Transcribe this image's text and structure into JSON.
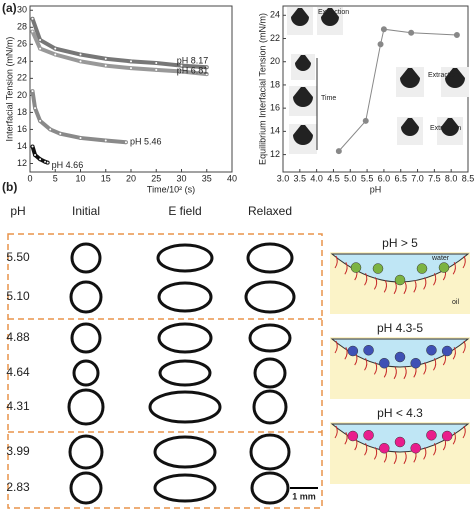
{
  "panel_a": {
    "label": "(a)"
  },
  "chart_data": [
    {
      "type": "line",
      "ylabel": "Interfacial Tension (mN/m)",
      "xlabel": "Time/10² (s)",
      "xlim": [
        0,
        40
      ],
      "xticks": [
        0,
        5,
        10,
        15,
        20,
        25,
        30,
        35,
        40
      ],
      "ylim": [
        11,
        30.5
      ],
      "yticks": [
        12,
        14,
        16,
        18,
        20,
        22,
        24,
        26,
        28,
        30
      ],
      "series": [
        {
          "name": "pH 8.17",
          "color": "#777777",
          "x": [
            0.5,
            2,
            5,
            10,
            15,
            20,
            25,
            30,
            35
          ],
          "values": [
            29,
            26.5,
            25.5,
            24.8,
            24.3,
            24,
            23.8,
            23.5,
            23.3
          ]
        },
        {
          "name": "pH 6.81",
          "color": "#999999",
          "x": [
            0.5,
            2,
            5,
            10,
            15,
            20,
            25,
            30,
            35
          ],
          "values": [
            27.5,
            25.5,
            24.8,
            24,
            23.5,
            23.2,
            23,
            22.8,
            22.5
          ]
        },
        {
          "name": "pH 5.46",
          "color": "#8a8a8a",
          "x": [
            0.5,
            1,
            2,
            4,
            6,
            10,
            15,
            19
          ],
          "values": [
            20.5,
            18.5,
            17,
            16,
            15.5,
            15,
            14.7,
            14.5
          ]
        },
        {
          "name": "pH 4.66",
          "color": "#111111",
          "x": [
            0.5,
            1,
            2,
            3,
            3.5
          ],
          "values": [
            14,
            13,
            12.5,
            12.2,
            12.1
          ]
        }
      ]
    },
    {
      "type": "scatter",
      "ylabel": "Equilibrium Interfacial Tension (mN/m)",
      "xlabel": "pH",
      "xlim": [
        3,
        8.5
      ],
      "xticks": [
        {
          "value": 3,
          "label": "3.0"
        },
        3.5,
        {
          "value": 4,
          "label": "4.0"
        },
        4.5,
        {
          "value": 5,
          "label": "5.0"
        },
        5.5,
        {
          "value": 6,
          "label": "6.0"
        },
        6.5,
        {
          "value": 7,
          "label": "7.0"
        },
        7.5,
        {
          "value": 8,
          "label": "8.0"
        },
        8.5
      ],
      "ylim": [
        10.5,
        24.8
      ],
      "yticks": [
        12,
        14,
        16,
        18,
        20,
        22,
        24
      ],
      "series": [
        {
          "color": "#888888",
          "x": [
            4.66,
            5.46,
            5.9,
            6.0,
            6.81,
            8.17
          ],
          "values": [
            12.3,
            14.9,
            21.5,
            22.8,
            22.5,
            22.3
          ]
        }
      ],
      "annotations": [
        "Extraction",
        "Time",
        "Extraction",
        "Extraction"
      ]
    }
  ],
  "panel_b": {
    "label": "(b)",
    "headers": [
      "pH",
      "Initial",
      "E field",
      "Relaxed"
    ],
    "rows": [
      "5.50",
      "5.10",
      "4.88",
      "4.64",
      "4.31",
      "3.99",
      "2.83"
    ],
    "scale_bar": "1 mm",
    "schematics": [
      {
        "title": "pH > 5",
        "water": "water",
        "oil": "oil"
      },
      {
        "title": "pH 4.3-5"
      },
      {
        "title": "pH < 4.3"
      }
    ]
  }
}
